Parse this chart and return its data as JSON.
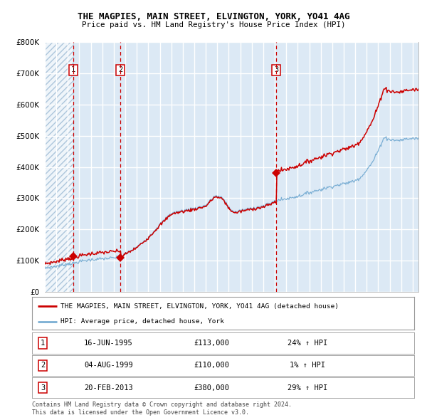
{
  "title": "THE MAGPIES, MAIN STREET, ELVINGTON, YORK, YO41 4AG",
  "subtitle": "Price paid vs. HM Land Registry's House Price Index (HPI)",
  "legend_line1": "THE MAGPIES, MAIN STREET, ELVINGTON, YORK, YO41 4AG (detached house)",
  "legend_line2": "HPI: Average price, detached house, York",
  "table_rows": [
    [
      "1",
      "16-JUN-1995",
      "£113,000",
      "24% ↑ HPI"
    ],
    [
      "2",
      "04-AUG-1999",
      "£110,000",
      "1% ↑ HPI"
    ],
    [
      "3",
      "20-FEB-2013",
      "£380,000",
      "29% ↑ HPI"
    ]
  ],
  "footnote1": "Contains HM Land Registry data © Crown copyright and database right 2024.",
  "footnote2": "This data is licensed under the Open Government Licence v3.0.",
  "sale_dates": [
    1995.46,
    1999.59,
    2013.13
  ],
  "sale_prices": [
    113000,
    110000,
    380000
  ],
  "sale_numbers": [
    "1",
    "2",
    "3"
  ],
  "red_line_color": "#cc0000",
  "blue_line_color": "#7bafd4",
  "background_color": "#dce9f5",
  "grid_color": "#ffffff",
  "dashed_line_color": "#cc0000",
  "ylim": [
    0,
    800000
  ],
  "yticks": [
    0,
    100000,
    200000,
    300000,
    400000,
    500000,
    600000,
    700000,
    800000
  ],
  "xlim_start": 1993.0,
  "xlim_end": 2025.5,
  "hpi_anchors_x": [
    1993.0,
    1994.0,
    1995.0,
    1995.5,
    1996.0,
    1997.0,
    1998.0,
    1999.0,
    1999.6,
    2000.0,
    2001.0,
    2002.0,
    2003.0,
    2004.0,
    2005.0,
    2006.0,
    2007.0,
    2007.8,
    2008.5,
    2009.0,
    2009.5,
    2010.0,
    2011.0,
    2012.0,
    2013.0,
    2013.2,
    2014.0,
    2015.0,
    2016.0,
    2017.0,
    2018.0,
    2019.0,
    2020.0,
    2020.5,
    2021.0,
    2021.5,
    2022.0,
    2022.5,
    2023.0,
    2023.5,
    2024.0,
    2024.5,
    2025.5
  ],
  "hpi_anchors_y": [
    76000,
    82000,
    90000,
    91000,
    97000,
    103000,
    106000,
    109000,
    110000,
    122000,
    143000,
    175000,
    215000,
    252000,
    260000,
    267000,
    277000,
    308000,
    300000,
    270000,
    255000,
    260000,
    268000,
    274000,
    290000,
    293000,
    298000,
    306000,
    318000,
    328000,
    338000,
    346000,
    356000,
    368000,
    390000,
    415000,
    452000,
    495000,
    488000,
    485000,
    486000,
    490000,
    492000
  ]
}
